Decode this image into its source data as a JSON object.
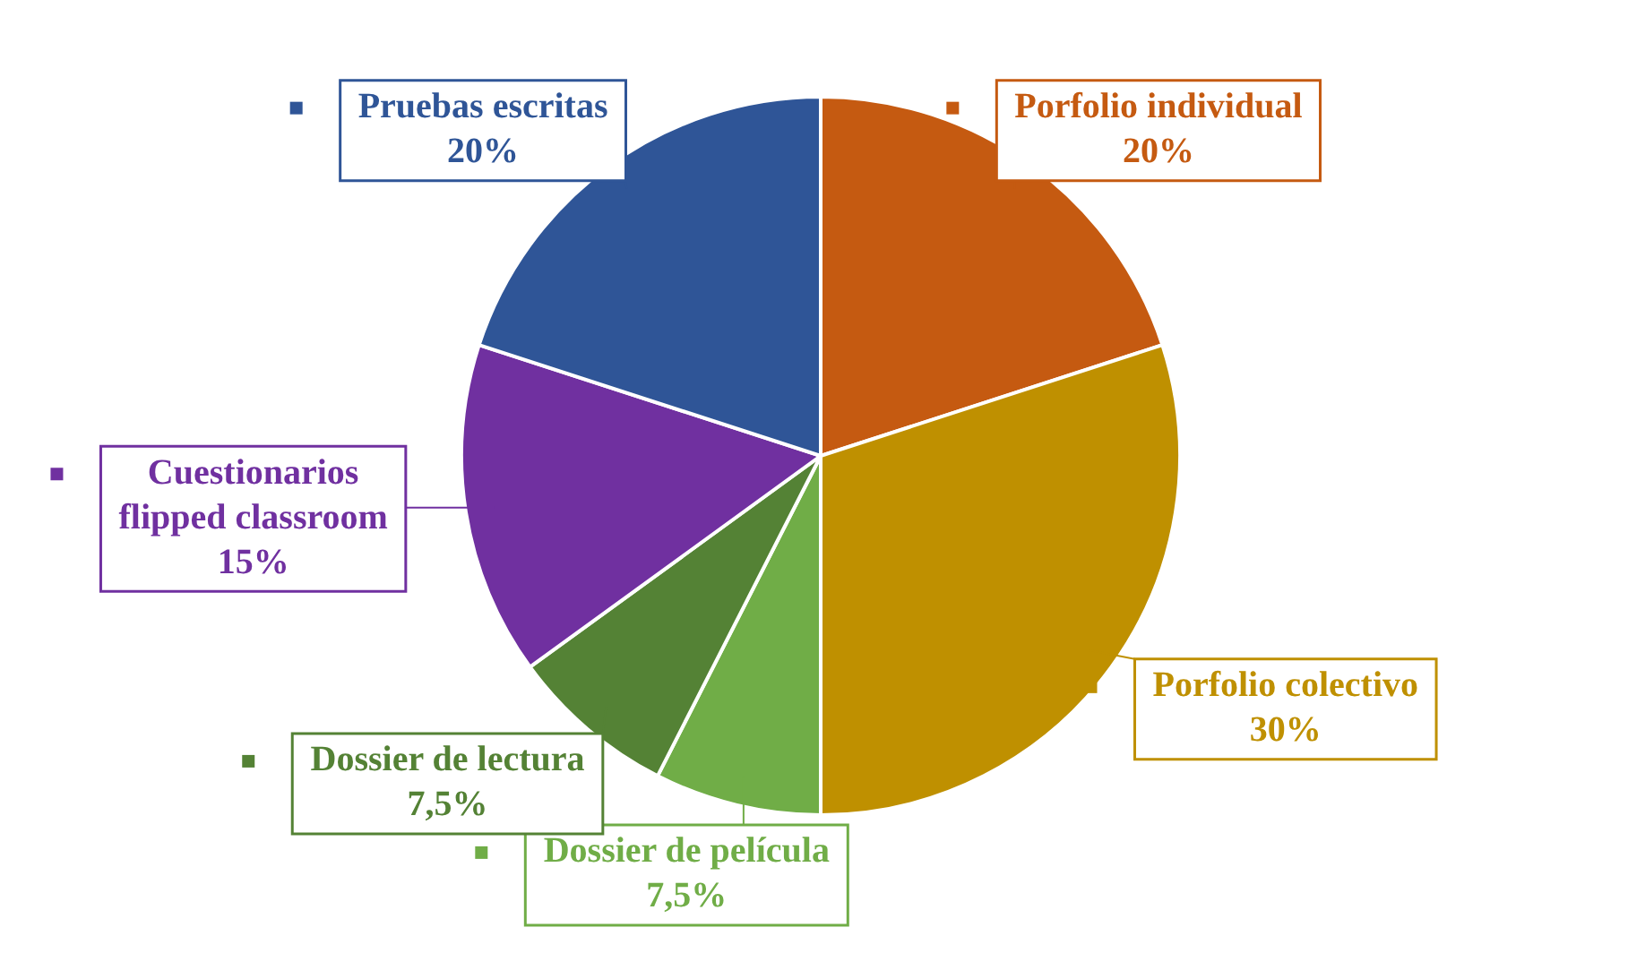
{
  "chart_data": {
    "type": "pie",
    "categories": [
      "Porfolio individual",
      "Porfolio colectivo",
      "Dossier de película",
      "Dossier de lectura",
      "Cuestionarios flipped classroom",
      "Pruebas escritas"
    ],
    "values": [
      20,
      30,
      7.5,
      7.5,
      15,
      20
    ],
    "colors": [
      "#c55a11",
      "#bf9000",
      "#70ad47",
      "#548235",
      "#7030a0",
      "#2f5597"
    ],
    "value_labels": [
      "20%",
      "30%",
      "7,5%",
      "7,5%",
      "15%",
      "20%"
    ],
    "legend": "bottom left"
  }
}
